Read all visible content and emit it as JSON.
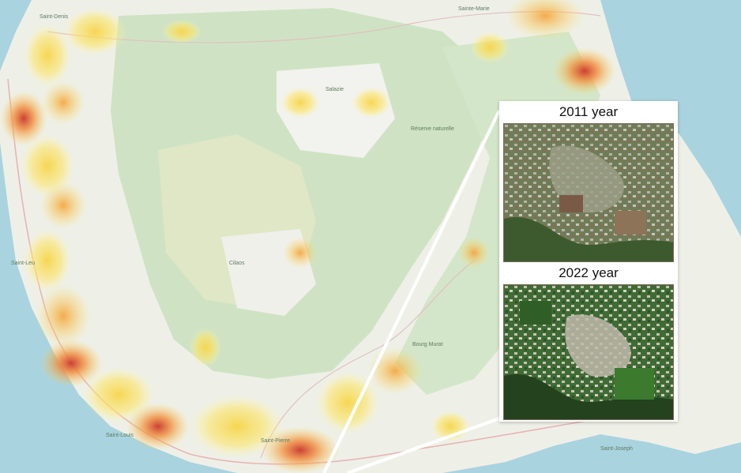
{
  "inset": {
    "before_label": "2011 year",
    "after_label": "2022 year"
  },
  "place_labels": [
    "Sainte-Marie",
    "Saint-Denis",
    "Salazie",
    "Réserve naturelle",
    "Cilaos",
    "Saint-Leu",
    "Saint-Louis",
    "Saint-Pierre",
    "Bourg Murat",
    "Saint-Joseph"
  ],
  "colors": {
    "sea": "#a9d3df",
    "land": "#eef0e8",
    "forest": "#cfe3c4",
    "heat_low": "#fff176",
    "heat_mid": "#ffb347",
    "heat_high": "#d9502a",
    "roads": "#e8b4b4"
  },
  "icons": [
    "heatmap-layer",
    "callout-lines",
    "satellite-inset"
  ]
}
